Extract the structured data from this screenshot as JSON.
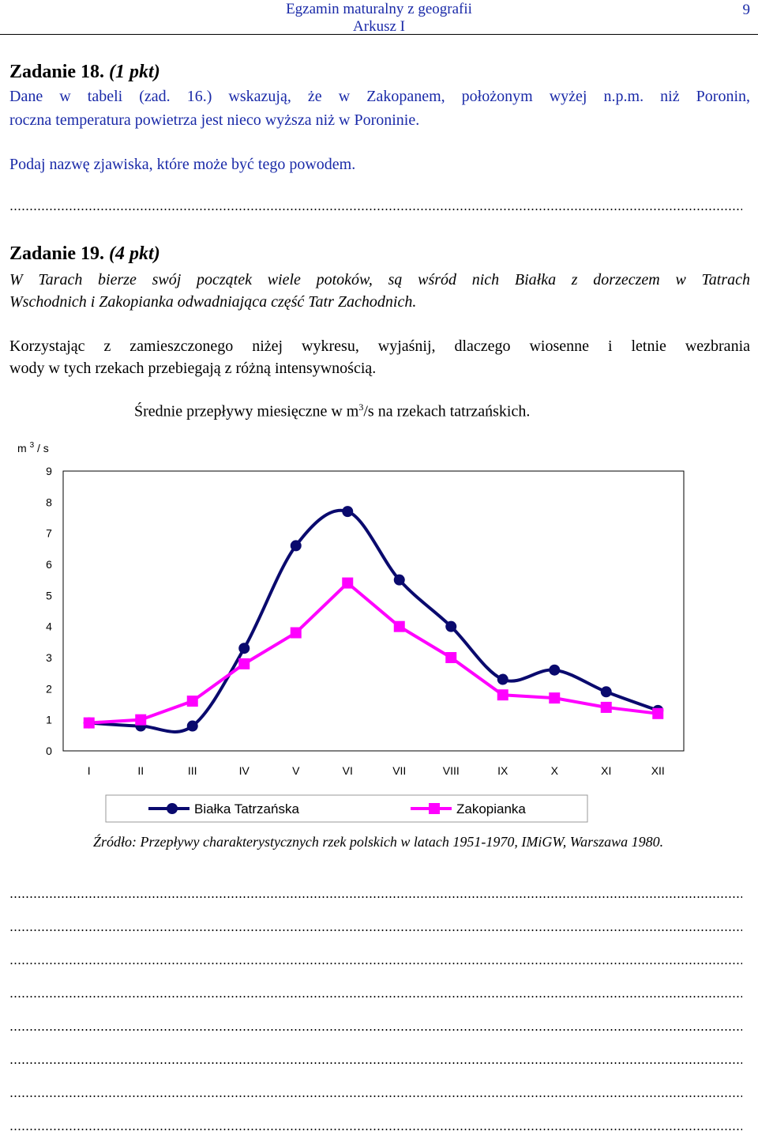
{
  "header": {
    "line1": "Egzamin maturalny z geografii",
    "line2": "Arkusz I",
    "page_number": "9"
  },
  "task18": {
    "title": "Zadanie 18.",
    "points": "(1 pkt)",
    "text_line1": "Dane w tabeli (zad. 16.) wskazują, że w Zakopanem, położonym wyżej n.p.m. niż Poronin,",
    "text_line2": "roczna temperatura powietrza jest nieco wyższa niż w Poroninie.",
    "question": "Podaj nazwę zjawiska, które może być tego powodem."
  },
  "task19": {
    "title": "Zadanie 19.",
    "points": "(4 pkt)",
    "intro_line1": "W Tarach bierze swój początek wiele potoków, są wśród nich Białka z dorzeczem w Tatrach",
    "intro_line2": "Wschodnich i Zakopianka odwadniająca część Tatr Zachodnich.",
    "question_line1": "Korzystając z zamieszczonego niżej wykresu, wyjaśnij, dlaczego wiosenne i letnie wezbrania",
    "question_line2": "wody w tych rzekach przebiegają z różną intensywnością.",
    "source": "Źródło: Przepływy charakterystycznych rzek polskich w latach 1951-1970, IMiGW, Warszawa 1980."
  },
  "chart_title": {
    "before": "Średnie przepływy miesięczne w m",
    "sup": "3",
    "after": "/s na rzekach tatrzańskich."
  },
  "chart_data": {
    "type": "line",
    "title": "Średnie przepływy miesięczne w m3/s na rzekach tatrzańskich.",
    "ylabel": "m 3 / s",
    "xlabel": "",
    "categories": [
      "I",
      "II",
      "III",
      "IV",
      "V",
      "VI",
      "VII",
      "VIII",
      "IX",
      "X",
      "XI",
      "XII"
    ],
    "ylim": [
      0,
      9
    ],
    "yticks": [
      0,
      1,
      2,
      3,
      4,
      5,
      6,
      7,
      8,
      9
    ],
    "grid": false,
    "legend_position": "bottom",
    "series": [
      {
        "name": "Białka Tatrzańska",
        "color": "#0a0a6e",
        "marker": "circle",
        "values": [
          0.9,
          0.8,
          0.8,
          3.3,
          6.6,
          7.7,
          5.5,
          4.0,
          2.3,
          2.6,
          1.9,
          1.3
        ]
      },
      {
        "name": "Zakopianka",
        "color": "#ff00ff",
        "marker": "square",
        "values": [
          0.9,
          1.0,
          1.6,
          2.8,
          3.8,
          5.4,
          4.0,
          3.0,
          1.8,
          1.7,
          1.4,
          1.2
        ]
      }
    ]
  }
}
